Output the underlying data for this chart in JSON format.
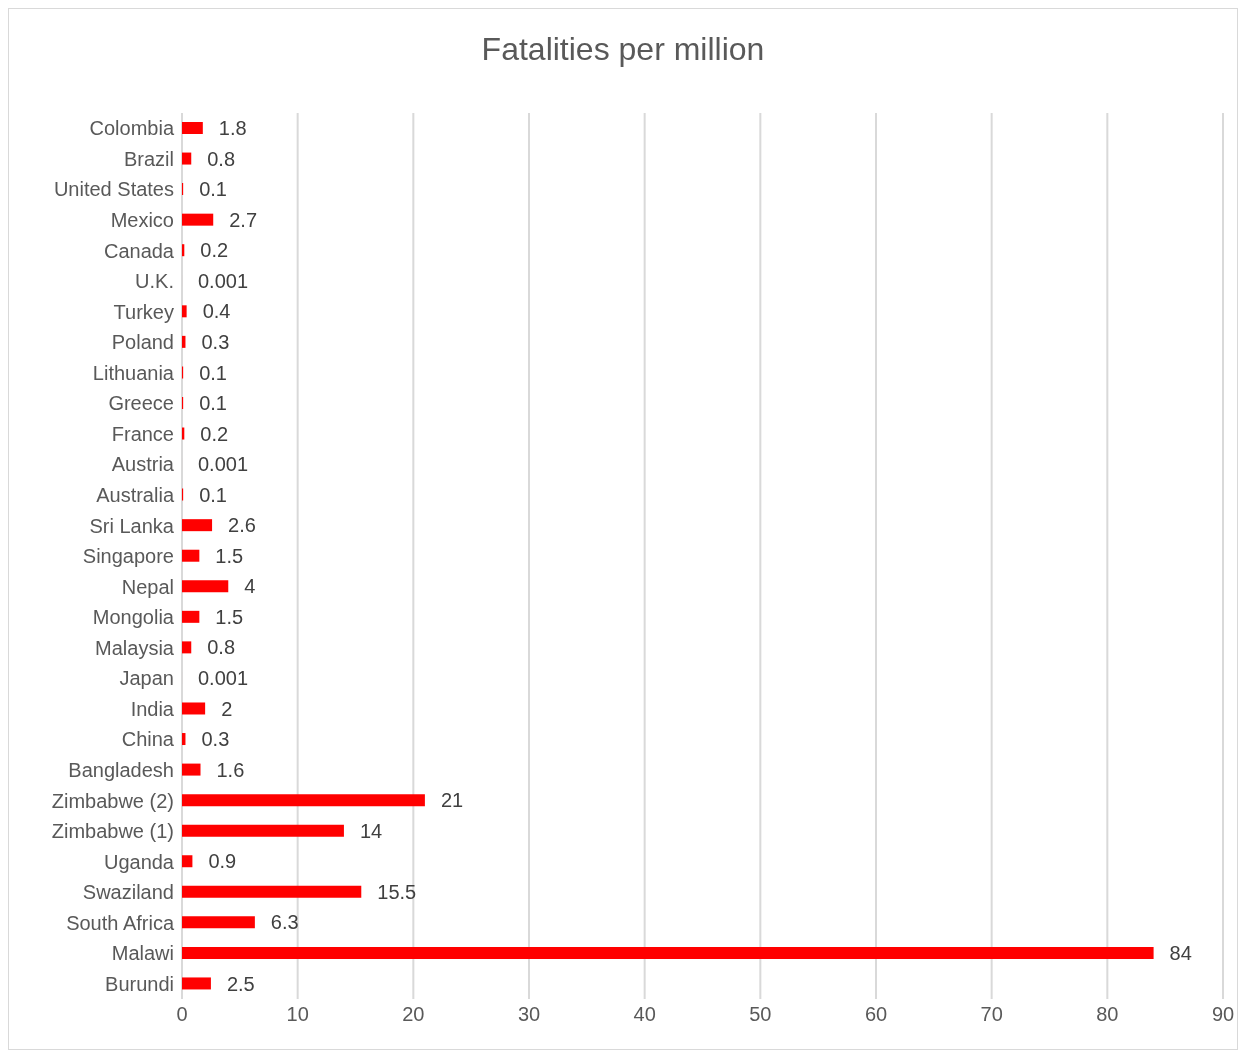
{
  "chart_data": {
    "type": "bar",
    "orientation": "horizontal",
    "title": "Fatalities per million",
    "categories": [
      "Colombia",
      "Brazil",
      "United States",
      "Mexico",
      "Canada",
      "U.K.",
      "Turkey",
      "Poland",
      "Lithuania",
      "Greece",
      "France",
      "Austria",
      "Australia",
      "Sri Lanka",
      "Singapore",
      "Nepal",
      "Mongolia",
      "Malaysia",
      "Japan",
      "India",
      "China",
      "Bangladesh",
      "Zimbabwe (2)",
      "Zimbabwe (1)",
      "Uganda",
      "Swaziland",
      "South Africa",
      "Malawi",
      "Burundi"
    ],
    "values": [
      1.8,
      0.8,
      0.1,
      2.7,
      0.2,
      0.001,
      0.4,
      0.3,
      0.1,
      0.1,
      0.2,
      0.001,
      0.1,
      2.6,
      1.5,
      4,
      1.5,
      0.8,
      0.001,
      2,
      0.3,
      1.6,
      21,
      14,
      0.9,
      15.5,
      6.3,
      84,
      2.5
    ],
    "color": "#ff0000",
    "xlim": [
      0,
      90
    ],
    "xticks": [
      0,
      10,
      20,
      30,
      40,
      50,
      60,
      70,
      80,
      90
    ],
    "grid": "x",
    "data_labels": true,
    "legend": false
  }
}
